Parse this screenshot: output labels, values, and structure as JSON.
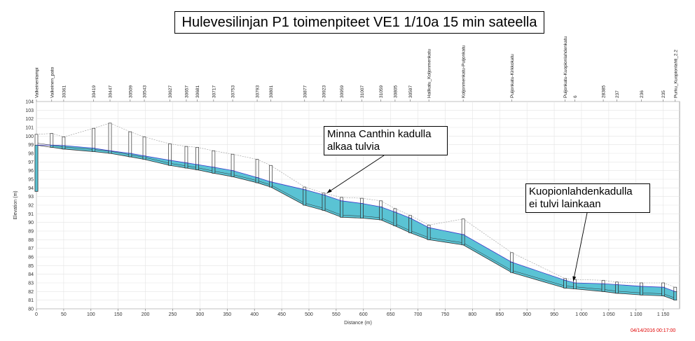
{
  "chart_data": {
    "type": "line",
    "title": "Hulevesilinjan P1 toimenpiteet VE1 1/10a 15 min sateella",
    "xlabel": "Distance (m)",
    "ylabel": "Elevation (m)",
    "xlim": [
      0,
      1180
    ],
    "ylim": [
      80,
      104
    ],
    "x_ticks": [
      0,
      50,
      100,
      150,
      200,
      250,
      300,
      350,
      400,
      450,
      500,
      550,
      600,
      650,
      700,
      750,
      800,
      850,
      900,
      950,
      1000,
      1050,
      1100,
      1150
    ],
    "x_tick_labels": [
      "0",
      "50",
      "100",
      "150",
      "200",
      "250",
      "300",
      "350",
      "400",
      "450",
      "500",
      "550",
      "600",
      "650",
      "700",
      "750",
      "800",
      "850",
      "900",
      "950",
      "1 000",
      "1 050",
      "1 100",
      "1 150"
    ],
    "y_ticks": [
      80,
      81,
      82,
      83,
      84,
      85,
      86,
      87,
      88,
      89,
      90,
      91,
      92,
      93,
      94,
      95,
      96,
      97,
      98,
      99,
      100,
      101,
      102,
      103,
      104
    ],
    "grid": true,
    "nodes": [
      {
        "label": "Valkeinenlampi",
        "x": 0,
        "invert": 93.6,
        "ground": 100.2
      },
      {
        "label": "Valkeinen_pato",
        "x": 28,
        "invert": 98.7,
        "ground": 100.3
      },
      {
        "label": "30361",
        "x": 50,
        "invert": 98.5,
        "ground": 99.9
      },
      {
        "label": "30419",
        "x": 105,
        "invert": 98.2,
        "ground": 100.9
      },
      {
        "label": "30447",
        "x": 135,
        "invert": 98.0,
        "ground": 101.5
      },
      {
        "label": "30509",
        "x": 172,
        "invert": 97.6,
        "ground": 100.5
      },
      {
        "label": "30543",
        "x": 198,
        "invert": 97.3,
        "ground": 99.9
      },
      {
        "label": "30627",
        "x": 245,
        "invert": 96.6,
        "ground": 99.1
      },
      {
        "label": "30657",
        "x": 275,
        "invert": 96.3,
        "ground": 98.8
      },
      {
        "label": "30681",
        "x": 295,
        "invert": 96.1,
        "ground": 98.7
      },
      {
        "label": "30717",
        "x": 325,
        "invert": 95.7,
        "ground": 98.3
      },
      {
        "label": "30753",
        "x": 360,
        "invert": 95.3,
        "ground": 97.9
      },
      {
        "label": "30793",
        "x": 405,
        "invert": 94.6,
        "ground": 97.3
      },
      {
        "label": "30801",
        "x": 430,
        "invert": 94.1,
        "ground": 96.6
      },
      {
        "label": "30877",
        "x": 492,
        "invert": 92.0,
        "ground": 94.1
      },
      {
        "label": "30923",
        "x": 527,
        "invert": 91.4,
        "ground": 93.4
      },
      {
        "label": "30959",
        "x": 560,
        "invert": 90.6,
        "ground": 92.9
      },
      {
        "label": "31007",
        "x": 597,
        "invert": 90.5,
        "ground": 92.8
      },
      {
        "label": "31059",
        "x": 632,
        "invert": 90.3,
        "ground": 92.5
      },
      {
        "label": "30805",
        "x": 658,
        "invert": 89.6,
        "ground": 91.6
      },
      {
        "label": "30597",
        "x": 686,
        "invert": 88.8,
        "ground": 90.8
      },
      {
        "label": "Hallkatu_Koljonmenkatu",
        "x": 720,
        "invert": 88.0,
        "ground": 89.7
      },
      {
        "label": "Koljonmenkatu-Puijonkatu",
        "x": 783,
        "invert": 87.4,
        "ground": 90.4
      },
      {
        "label": "Puijonkatu-Kirkkokatu",
        "x": 872,
        "invert": 84.2,
        "ground": 86.5
      },
      {
        "label": "Puijonkatu-Kuopionlahdenkatu",
        "x": 970,
        "invert": 82.4,
        "ground": 83.5
      },
      {
        "label": "6",
        "x": 988,
        "invert": 82.3,
        "ground": 83.4
      },
      {
        "label": "28385",
        "x": 1040,
        "invert": 82.0,
        "ground": 83.3
      },
      {
        "label": "237",
        "x": 1065,
        "invert": 81.8,
        "ground": 83.1
      },
      {
        "label": "236",
        "x": 1110,
        "invert": 81.6,
        "ground": 83.0
      },
      {
        "label": "235",
        "x": 1150,
        "invert": 81.5,
        "ground": 83.0
      },
      {
        "label": "Purku_Kuopionlahti_2.2",
        "x": 1172,
        "invert": 81.0,
        "ground": 82.5
      }
    ],
    "hgl": [
      98.95,
      98.95,
      98.9,
      98.6,
      98.3,
      98.0,
      97.7,
      97.2,
      96.9,
      96.7,
      96.4,
      96.0,
      95.2,
      94.7,
      93.8,
      93.2,
      92.5,
      92.2,
      91.8,
      91.2,
      90.5,
      89.4,
      88.6,
      85.4,
      83.3,
      83.0,
      82.9,
      82.8,
      82.6,
      82.5,
      82.0
    ],
    "annotations": [
      {
        "line1": "Minna Canthin kadulla",
        "line2": "alkaa tulvia",
        "target_x": 533,
        "target_y": 93.4
      },
      {
        "line1": "Kuopionlahdenkadulla",
        "line2": "ei tulvi lainkaan",
        "target_x": 985,
        "target_y": 83.2
      }
    ],
    "colors": {
      "water": "#5ac3d4",
      "pipe": "#333333",
      "hgl": "#3a3acc",
      "ground": "#999999"
    }
  },
  "timestamp": "04/14/2016 00:17:00"
}
